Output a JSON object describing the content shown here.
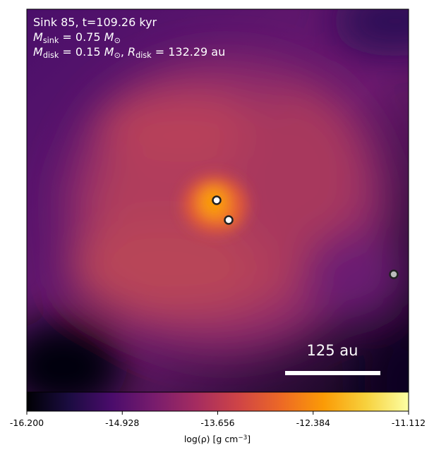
{
  "chart_data": {
    "type": "image",
    "annotations": [
      [
        {
          "text": "Sink 85, t=109.26 kyr"
        }
      ],
      [
        {
          "text": "M",
          "style": "italic"
        },
        {
          "text": "sink",
          "style": "sub"
        },
        {
          "text": " = 0.75 "
        },
        {
          "text": "M",
          "style": "italic"
        },
        {
          "text": "⊙",
          "style": "sub"
        }
      ],
      [
        {
          "text": "M",
          "style": "italic"
        },
        {
          "text": "disk",
          "style": "sub"
        },
        {
          "text": " = 0.15 "
        },
        {
          "text": "M",
          "style": "italic"
        },
        {
          "text": "⊙",
          "style": "sub"
        },
        {
          "text": ", "
        },
        {
          "text": "R",
          "style": "italic"
        },
        {
          "text": "disk",
          "style": "sub"
        },
        {
          "text": " = 132.29 au"
        }
      ]
    ],
    "scale_bar_label": "125 au",
    "colorbar": {
      "label": [
        {
          "text": "log(ρ) [g cm"
        },
        {
          "text": "−3",
          "style": "sup"
        },
        {
          "text": "]"
        }
      ],
      "lim": [
        -16.2,
        -11.112
      ],
      "ticks": [
        {
          "value": -16.2,
          "label": "-16.200"
        },
        {
          "value": -14.928,
          "label": "-14.928"
        },
        {
          "value": -13.656,
          "label": "-13.656"
        },
        {
          "value": -12.384,
          "label": "-12.384"
        },
        {
          "value": -11.112,
          "label": "-11.112"
        }
      ],
      "colormap": [
        "#000004",
        "#1b0c41",
        "#4a0c6b",
        "#781c6d",
        "#a52c60",
        "#cf4446",
        "#ed6925",
        "#fb9b06",
        "#f7d13d",
        "#fcffa4"
      ]
    }
  }
}
